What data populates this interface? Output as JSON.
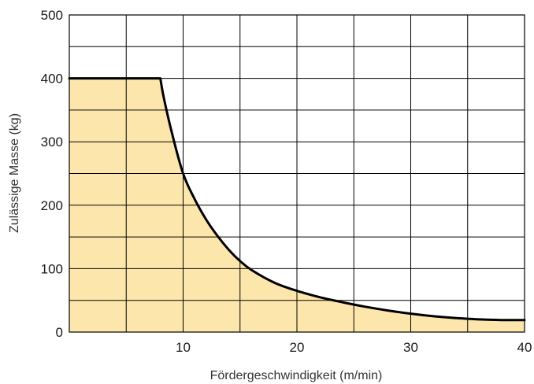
{
  "chart_data": {
    "type": "area",
    "title": "",
    "xlabel": "Fördergeschwindigkeit (m/min)",
    "ylabel": "Zulässige Masse (kg)",
    "xlim": [
      0,
      40
    ],
    "ylim": [
      0,
      500
    ],
    "x_ticks": [
      {
        "value": 10,
        "label": "10"
      },
      {
        "value": 20,
        "label": "20"
      },
      {
        "value": 30,
        "label": "30"
      },
      {
        "value": 40,
        "label": "40"
      }
    ],
    "y_ticks": [
      {
        "value": 0,
        "label": "0"
      },
      {
        "value": 100,
        "label": "100"
      },
      {
        "value": 200,
        "label": "200"
      },
      {
        "value": 300,
        "label": "300"
      },
      {
        "value": 400,
        "label": "400"
      },
      {
        "value": 500,
        "label": "500"
      }
    ],
    "grid": true,
    "x_grid_step": 5,
    "y_grid_step": 50,
    "series": [
      {
        "x": [
          0,
          8,
          8.3,
          9,
          10,
          11,
          12,
          13,
          14,
          15,
          16,
          18,
          20,
          22,
          24,
          26,
          28,
          30,
          32,
          34,
          36,
          38,
          40
        ],
        "y": [
          400,
          400,
          370,
          315,
          250,
          210,
          178,
          152,
          130,
          112,
          98,
          78,
          65,
          55,
          47,
          40,
          34,
          29,
          25,
          22,
          20,
          19,
          19
        ]
      }
    ],
    "colors": {
      "fill": "#fde6ab",
      "line": "#000000",
      "grid": "#000000"
    }
  }
}
